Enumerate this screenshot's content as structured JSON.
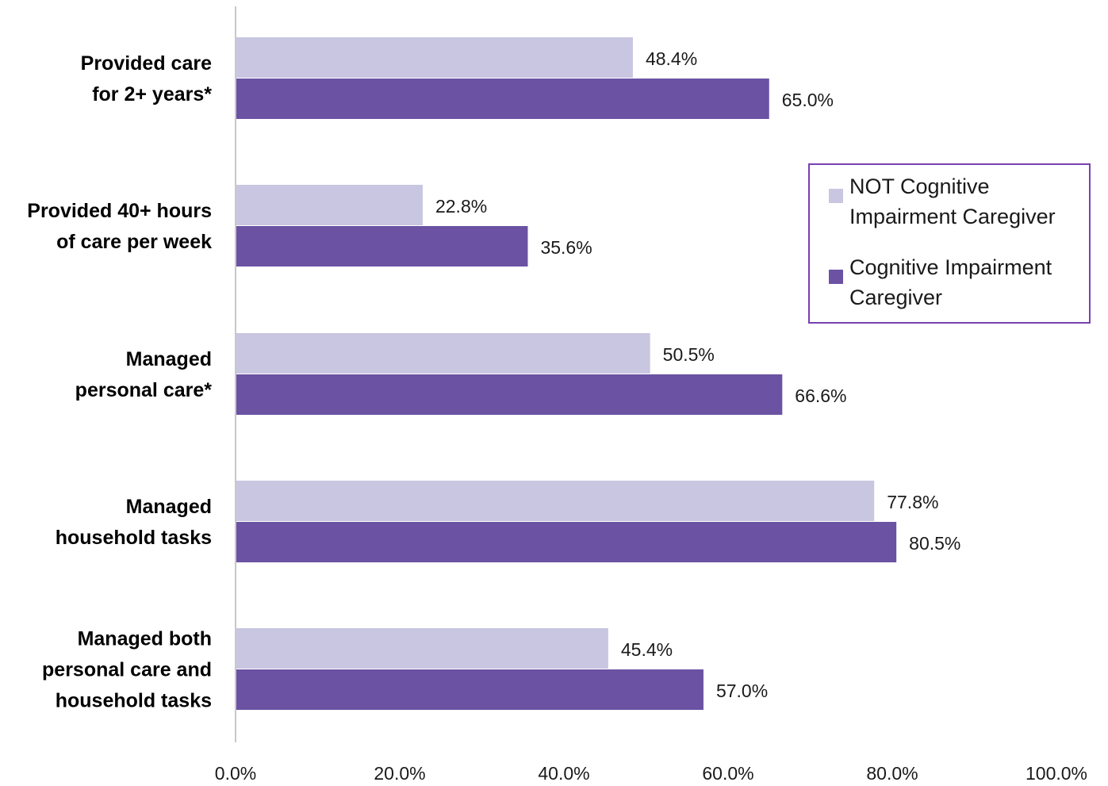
{
  "chart_data": {
    "type": "bar",
    "orientation": "horizontal",
    "categories": [
      [
        "Provided care",
        "for 2+ years*"
      ],
      [
        "Provided 40+ hours",
        "of care per week"
      ],
      [
        "Managed",
        "personal care*"
      ],
      [
        "Managed",
        "household tasks"
      ],
      [
        "Managed both",
        "personal care and",
        "household tasks"
      ]
    ],
    "series": [
      {
        "name": "NOT Cognitive Impairment Caregiver",
        "color": "#c9c6e1",
        "values": [
          48.4,
          22.8,
          50.5,
          77.8,
          45.4
        ],
        "labels": [
          "48.4%",
          "22.8%",
          "50.5%",
          "77.8%",
          "45.4%"
        ]
      },
      {
        "name": "Cognitive Impairment Caregiver",
        "color": "#6b52a3",
        "values": [
          65.0,
          35.6,
          66.6,
          80.5,
          57.0
        ],
        "labels": [
          "65.0%",
          "35.6%",
          "66.6%",
          "80.5%",
          "57.0%"
        ]
      }
    ],
    "xlim": [
      0,
      100
    ],
    "x_ticks": [
      "0.0%",
      "20.0%",
      "40.0%",
      "60.0%",
      "80.0%",
      "100.0%"
    ],
    "grid": false,
    "legend_position": "right",
    "legend_border_color": "#7a3fb0",
    "title": "",
    "xlabel": "",
    "ylabel": ""
  }
}
